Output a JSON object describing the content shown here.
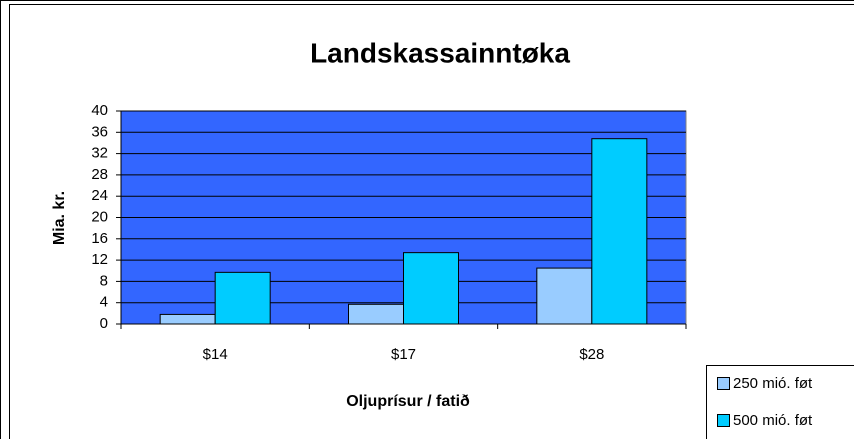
{
  "chart_data": {
    "type": "bar",
    "title": "Landskassainntøka",
    "x_label": "Oljuprísur / fatið",
    "y_label": "Mia. kr.",
    "categories": [
      "$14",
      "$17",
      "$28"
    ],
    "series": [
      {
        "name": "250 mió. føt",
        "color": "#99ccff",
        "values": [
          1.8,
          3.7,
          10.5
        ]
      },
      {
        "name": "500 mió. føt",
        "color": "#00ccff",
        "values": [
          9.7,
          13.4,
          34.8
        ]
      }
    ],
    "ylim": [
      0,
      40
    ],
    "yticks": [
      0,
      4,
      8,
      12,
      16,
      20,
      24,
      28,
      32,
      36,
      40
    ],
    "grid": true,
    "plot_background": "#3366ff",
    "legend": "bottom-right"
  }
}
